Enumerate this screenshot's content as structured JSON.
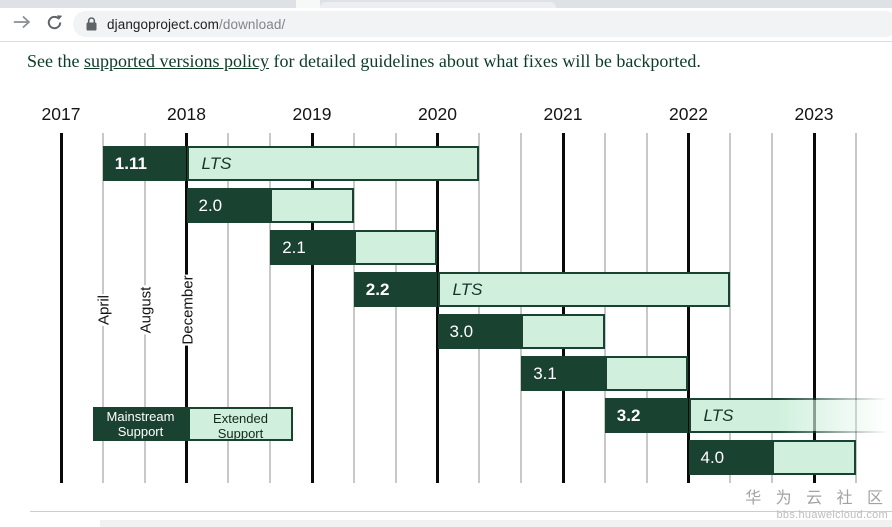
{
  "browser": {
    "url_domain": "djangoproject.com",
    "url_path": "/download/",
    "icons": {
      "forward": "forward-arrow",
      "reload": "reload-circular-arrow",
      "lock": "padlock"
    }
  },
  "intro": {
    "text_before": "See the ",
    "link_text": "supported versions policy",
    "text_after": " for detailed guidelines about what fixes will be backported."
  },
  "chart_data": {
    "type": "gantt",
    "title": "Django supported versions timeline",
    "x_ticks_years": [
      "2017",
      "2018",
      "2019",
      "2020",
      "2021",
      "2022",
      "2023"
    ],
    "month_labels": [
      "April",
      "August",
      "December"
    ],
    "month_gridline_positions": [
      2017.333,
      2017.667,
      2018.0
    ],
    "lts_label": "LTS",
    "axis": {
      "x_min": 2016.85,
      "x_max": 2023.6,
      "major_gridlines": "years",
      "minor_gridlines": "thirds of year"
    },
    "legend": {
      "mainstream_label": "Mainstream Support",
      "extended_label": "Extended Support"
    },
    "bars": [
      {
        "version": "1.11",
        "lts": true,
        "mainstream": [
          2017.333,
          2018.0
        ],
        "extended": [
          2018.0,
          2020.333
        ]
      },
      {
        "version": "2.0",
        "lts": false,
        "mainstream": [
          2018.0,
          2018.667
        ],
        "extended": [
          2018.667,
          2019.333
        ]
      },
      {
        "version": "2.1",
        "lts": false,
        "mainstream": [
          2018.667,
          2019.333
        ],
        "extended": [
          2019.333,
          2020.0
        ]
      },
      {
        "version": "2.2",
        "lts": true,
        "mainstream": [
          2019.333,
          2020.0
        ],
        "extended": [
          2020.0,
          2022.333
        ]
      },
      {
        "version": "3.0",
        "lts": false,
        "mainstream": [
          2020.0,
          2020.667
        ],
        "extended": [
          2020.667,
          2021.333
        ]
      },
      {
        "version": "3.1",
        "lts": false,
        "mainstream": [
          2020.667,
          2021.333
        ],
        "extended": [
          2021.333,
          2022.0
        ]
      },
      {
        "version": "3.2",
        "lts": true,
        "mainstream": [
          2021.333,
          2022.0
        ],
        "extended": [
          2022.0,
          2024.333
        ],
        "fade_right": true
      },
      {
        "version": "4.0",
        "lts": false,
        "mainstream": [
          2022.0,
          2022.667
        ],
        "extended": [
          2022.667,
          2023.333
        ]
      }
    ],
    "colors": {
      "mainstream": "#1a4231",
      "extended": "#d0f0dd",
      "grid_dark": "#0a0a0a",
      "grid_light": "#c8c8c8"
    }
  },
  "watermark": {
    "title": "华 为 云 社 区",
    "subtitle": "bbs.huaweicloud.com"
  }
}
